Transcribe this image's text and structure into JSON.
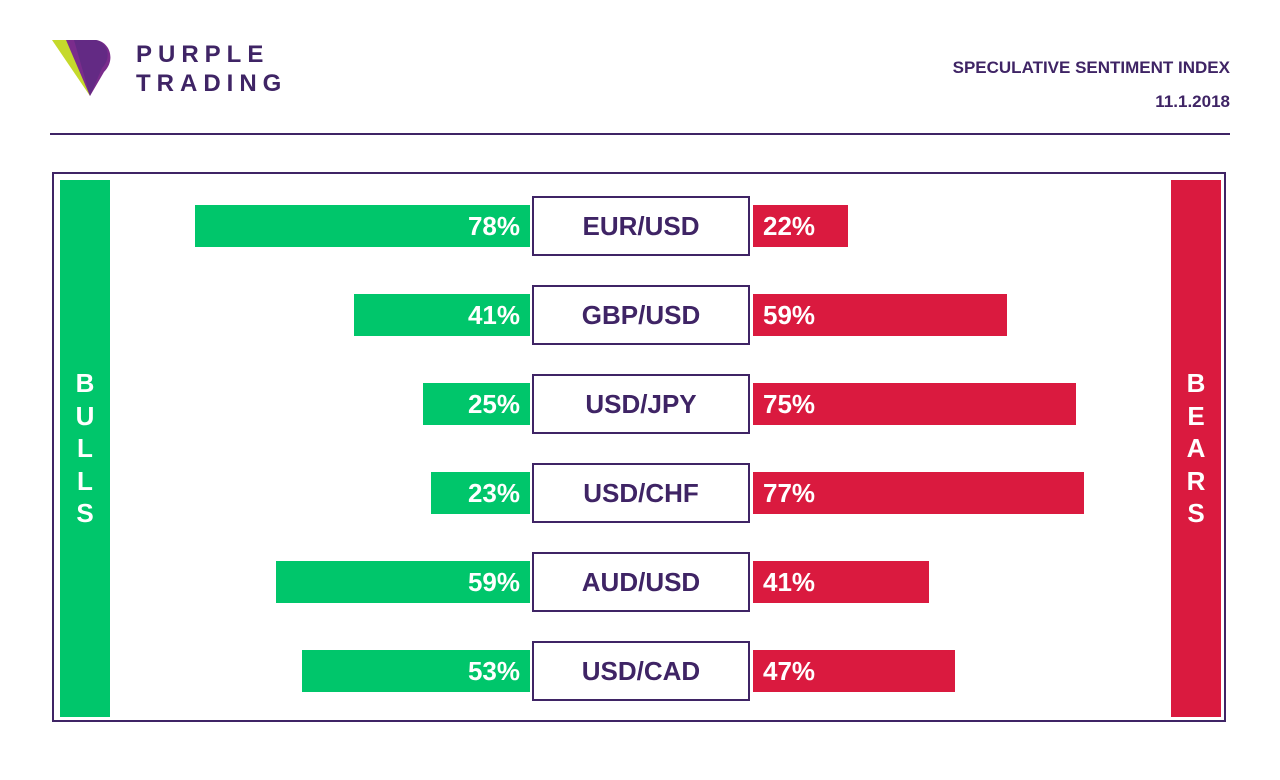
{
  "brand": {
    "line1": "PURPLE",
    "line2": "TRADING"
  },
  "header": {
    "title": "SPECULATIVE SENTIMENT INDEX",
    "date": "11.1.2018"
  },
  "colors": {
    "purple": "#3f2465",
    "bulls": "#00c66b",
    "bears": "#da1a3f"
  },
  "chart_data": {
    "type": "bar",
    "left_label": "BULLS",
    "right_label": "BEARS",
    "categories": [
      "EUR/USD",
      "GBP/USD",
      "USD/JPY",
      "USD/CHF",
      "AUD/USD",
      "USD/CAD"
    ],
    "series": [
      {
        "values": [
          78,
          41,
          25,
          23,
          59,
          53
        ],
        "labels": [
          "78%",
          "41%",
          "25%",
          "23%",
          "59%",
          "53%"
        ]
      },
      {
        "values": [
          22,
          59,
          75,
          77,
          41,
          47
        ],
        "labels": [
          "22%",
          "59%",
          "75%",
          "77%",
          "41%",
          "47%"
        ]
      }
    ]
  }
}
